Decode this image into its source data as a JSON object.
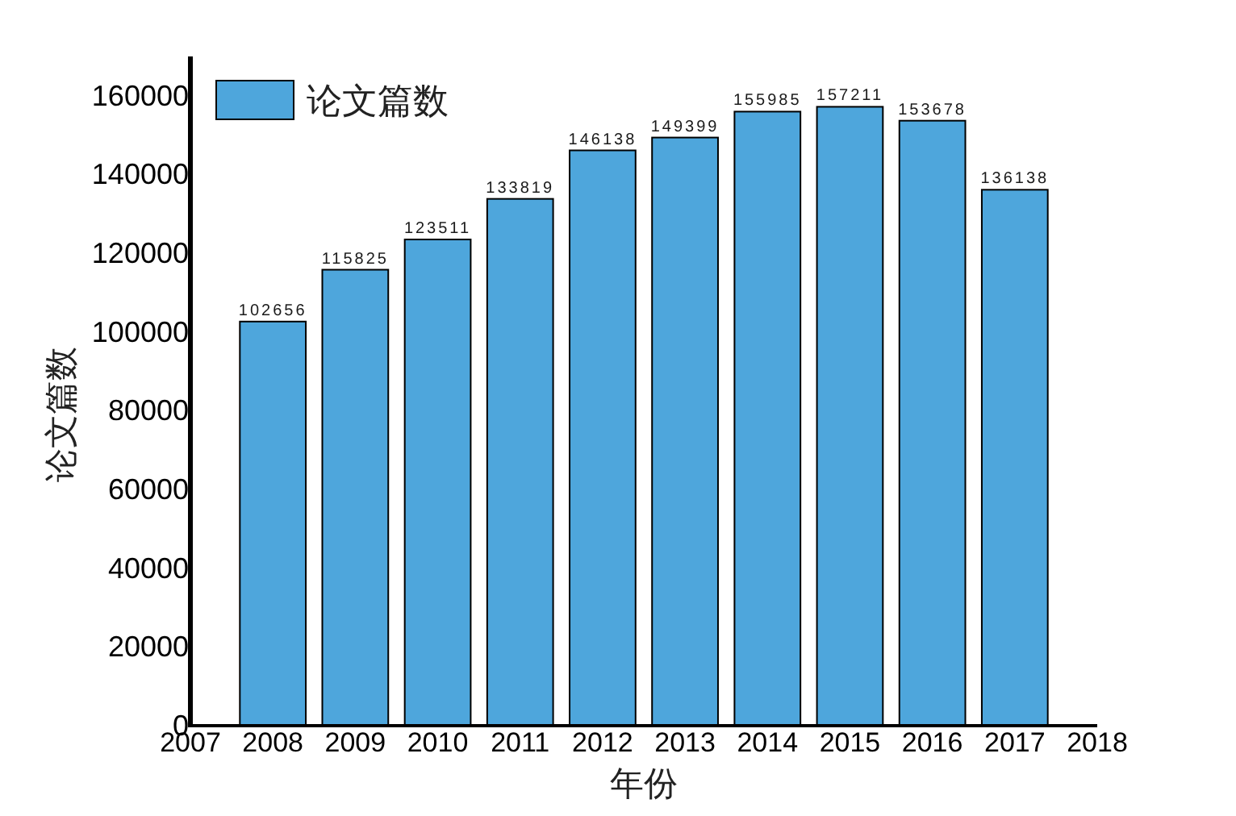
{
  "chart_data": {
    "type": "bar",
    "xlabel": "年份",
    "ylabel": "论文篇数",
    "x": [
      2008,
      2009,
      2010,
      2011,
      2012,
      2013,
      2014,
      2015,
      2016,
      2017
    ],
    "series": [
      {
        "name": "论文篇数",
        "color": "#4ea6dc",
        "values": [
          102656,
          115825,
          123511,
          133819,
          146138,
          149399,
          155985,
          157211,
          153678,
          136138
        ]
      }
    ],
    "xlim": [
      2007,
      2018
    ],
    "xticks": [
      2007,
      2008,
      2009,
      2010,
      2011,
      2012,
      2013,
      2014,
      2015,
      2016,
      2017,
      2018
    ],
    "ylim": [
      0,
      170000
    ],
    "yticks": [
      0,
      20000,
      40000,
      60000,
      80000,
      100000,
      120000,
      140000,
      160000
    ],
    "data_labels": true,
    "legend": "top left"
  }
}
